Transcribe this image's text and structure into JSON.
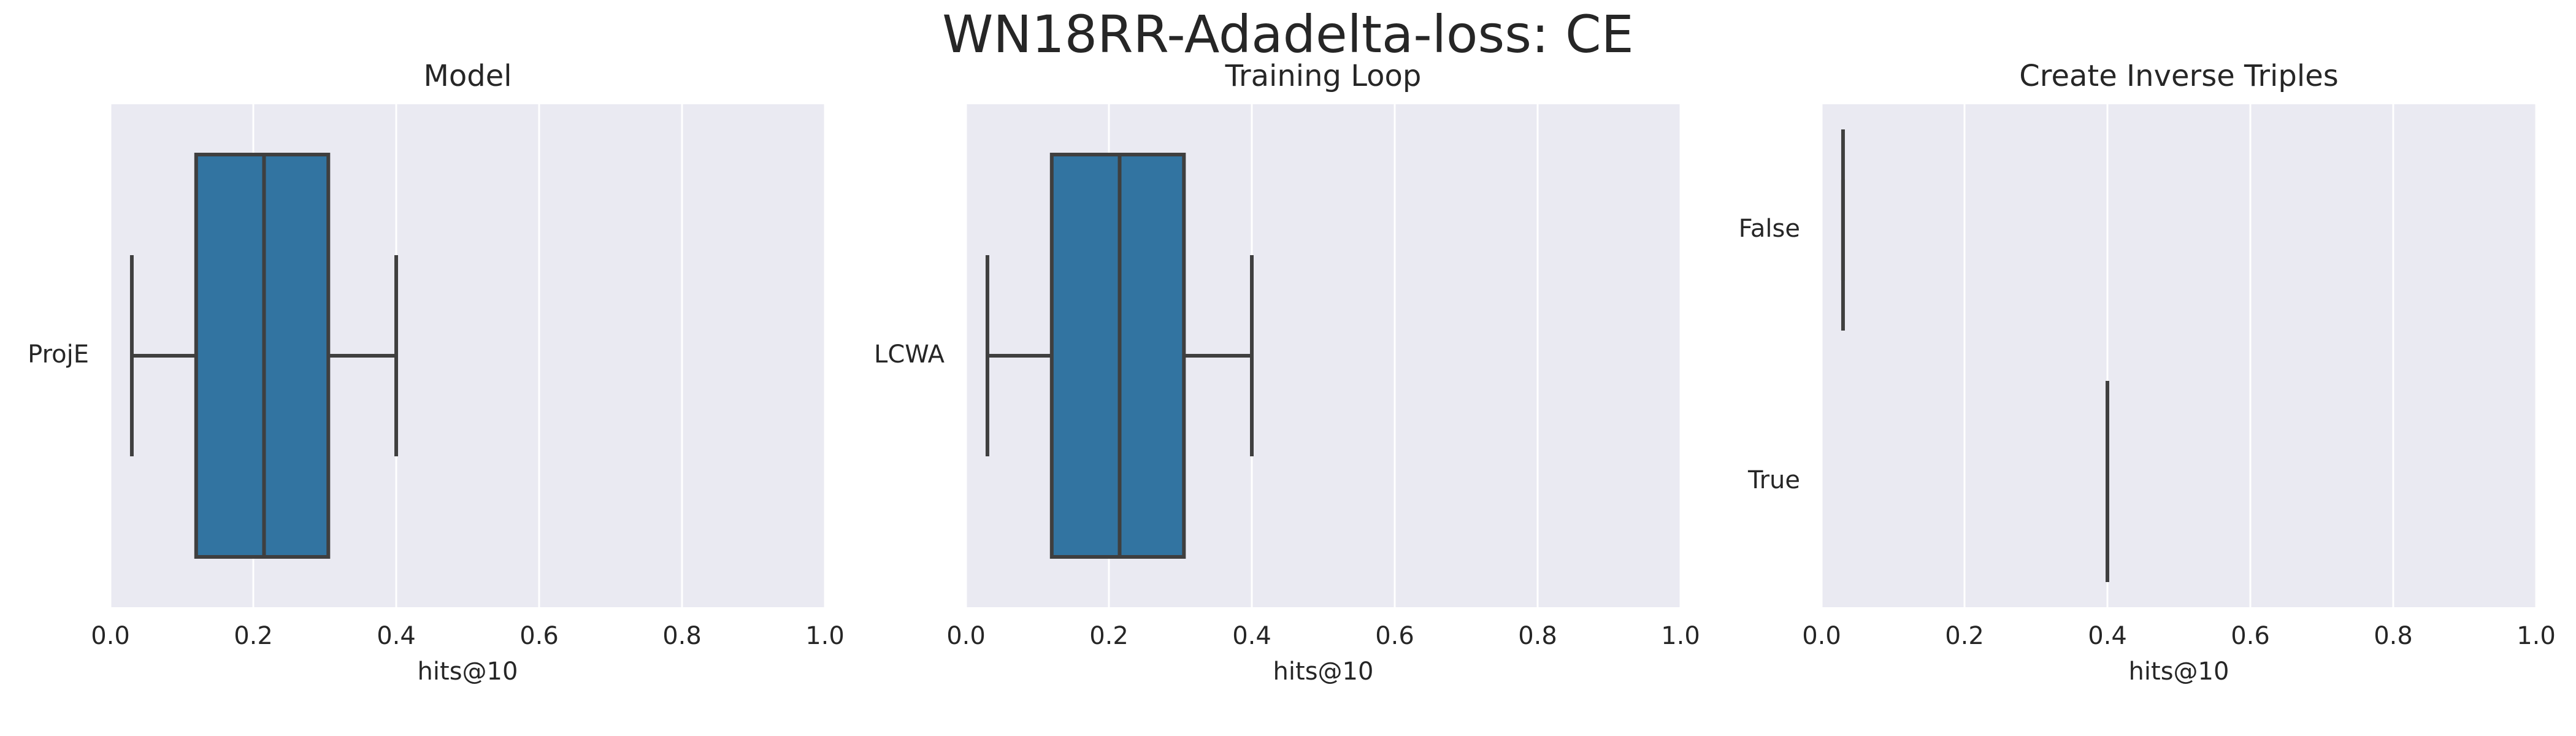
{
  "figure": {
    "suptitle": "WN18RR-Adadelta-loss: CE"
  },
  "style": {
    "panel_bg": "#eaeaf2",
    "grid": "#ffffff",
    "box_fill": "#3274a1",
    "line": "#3f3f3f"
  },
  "chart_data": [
    {
      "type": "box",
      "orientation": "horizontal",
      "title": "Model",
      "xlabel": "hits@10",
      "ylabel": "",
      "xlim": [
        0.0,
        1.0
      ],
      "xticks": [
        "0.0",
        "0.2",
        "0.4",
        "0.6",
        "0.8",
        "1.0"
      ],
      "grid": true,
      "categories": [
        "ProjE"
      ],
      "boxes": [
        {
          "category": "ProjE",
          "whisker_low": 0.03,
          "q1": 0.12,
          "median": 0.215,
          "q3": 0.305,
          "whisker_high": 0.4
        }
      ]
    },
    {
      "type": "box",
      "orientation": "horizontal",
      "title": "Training Loop",
      "xlabel": "hits@10",
      "ylabel": "",
      "xlim": [
        0.0,
        1.0
      ],
      "xticks": [
        "0.0",
        "0.2",
        "0.4",
        "0.6",
        "0.8",
        "1.0"
      ],
      "grid": true,
      "categories": [
        "LCWA"
      ],
      "boxes": [
        {
          "category": "LCWA",
          "whisker_low": 0.03,
          "q1": 0.12,
          "median": 0.215,
          "q3": 0.305,
          "whisker_high": 0.4
        }
      ]
    },
    {
      "type": "box",
      "orientation": "horizontal",
      "title": "Create Inverse Triples",
      "xlabel": "hits@10",
      "ylabel": "",
      "xlim": [
        0.0,
        1.0
      ],
      "xticks": [
        "0.0",
        "0.2",
        "0.4",
        "0.6",
        "0.8",
        "1.0"
      ],
      "grid": true,
      "categories": [
        "False",
        "True"
      ],
      "boxes": [
        {
          "category": "False",
          "whisker_low": 0.03,
          "q1": 0.03,
          "median": 0.03,
          "q3": 0.03,
          "whisker_high": 0.03
        },
        {
          "category": "True",
          "whisker_low": 0.4,
          "q1": 0.4,
          "median": 0.4,
          "q3": 0.4,
          "whisker_high": 0.4
        }
      ]
    }
  ]
}
